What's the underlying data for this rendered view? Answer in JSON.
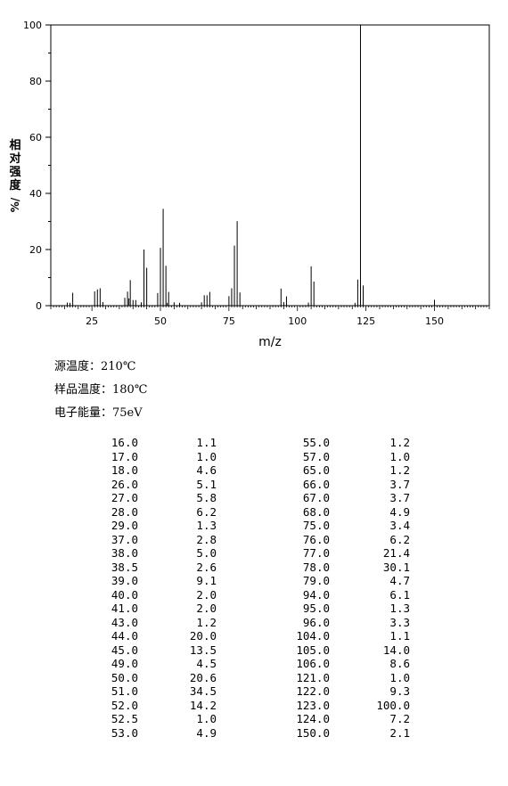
{
  "chart_data": {
    "type": "bar",
    "xlabel": "m/z",
    "ylabel": "相对强度 %/",
    "xlim": [
      10,
      170
    ],
    "ylim": [
      0,
      100
    ],
    "xticks": [
      25,
      50,
      75,
      100,
      125,
      150
    ],
    "yticks": [
      0,
      20,
      40,
      60,
      80,
      100
    ],
    "grid": false,
    "peaks": [
      {
        "mz": 16.0,
        "intensity": 1.1
      },
      {
        "mz": 17.0,
        "intensity": 1.0
      },
      {
        "mz": 18.0,
        "intensity": 4.6
      },
      {
        "mz": 26.0,
        "intensity": 5.1
      },
      {
        "mz": 27.0,
        "intensity": 5.8
      },
      {
        "mz": 28.0,
        "intensity": 6.2
      },
      {
        "mz": 29.0,
        "intensity": 1.3
      },
      {
        "mz": 37.0,
        "intensity": 2.8
      },
      {
        "mz": 38.0,
        "intensity": 5.0
      },
      {
        "mz": 38.5,
        "intensity": 2.6
      },
      {
        "mz": 39.0,
        "intensity": 9.1
      },
      {
        "mz": 40.0,
        "intensity": 2.0
      },
      {
        "mz": 41.0,
        "intensity": 2.0
      },
      {
        "mz": 43.0,
        "intensity": 1.2
      },
      {
        "mz": 44.0,
        "intensity": 20.0
      },
      {
        "mz": 45.0,
        "intensity": 13.5
      },
      {
        "mz": 49.0,
        "intensity": 4.5
      },
      {
        "mz": 50.0,
        "intensity": 20.6
      },
      {
        "mz": 51.0,
        "intensity": 34.5
      },
      {
        "mz": 52.0,
        "intensity": 14.2
      },
      {
        "mz": 52.5,
        "intensity": 1.0
      },
      {
        "mz": 53.0,
        "intensity": 4.9
      },
      {
        "mz": 55.0,
        "intensity": 1.2
      },
      {
        "mz": 57.0,
        "intensity": 1.0
      },
      {
        "mz": 65.0,
        "intensity": 1.2
      },
      {
        "mz": 66.0,
        "intensity": 3.7
      },
      {
        "mz": 67.0,
        "intensity": 3.7
      },
      {
        "mz": 68.0,
        "intensity": 4.9
      },
      {
        "mz": 75.0,
        "intensity": 3.4
      },
      {
        "mz": 76.0,
        "intensity": 6.2
      },
      {
        "mz": 77.0,
        "intensity": 21.4
      },
      {
        "mz": 78.0,
        "intensity": 30.1
      },
      {
        "mz": 79.0,
        "intensity": 4.7
      },
      {
        "mz": 94.0,
        "intensity": 6.1
      },
      {
        "mz": 95.0,
        "intensity": 1.3
      },
      {
        "mz": 96.0,
        "intensity": 3.3
      },
      {
        "mz": 104.0,
        "intensity": 1.1
      },
      {
        "mz": 105.0,
        "intensity": 14.0
      },
      {
        "mz": 106.0,
        "intensity": 8.6
      },
      {
        "mz": 121.0,
        "intensity": 1.0
      },
      {
        "mz": 122.0,
        "intensity": 9.3
      },
      {
        "mz": 123.0,
        "intensity": 100.0
      },
      {
        "mz": 124.0,
        "intensity": 7.2
      },
      {
        "mz": 150.0,
        "intensity": 2.1
      }
    ]
  },
  "conditions": [
    "源温度：210℃",
    "样品温度：180℃",
    "电子能量：75eV"
  ],
  "peak_table": [
    [
      "16.0",
      "1.1",
      "55.0",
      "1.2"
    ],
    [
      "17.0",
      "1.0",
      "57.0",
      "1.0"
    ],
    [
      "18.0",
      "4.6",
      "65.0",
      "1.2"
    ],
    [
      "26.0",
      "5.1",
      "66.0",
      "3.7"
    ],
    [
      "27.0",
      "5.8",
      "67.0",
      "3.7"
    ],
    [
      "28.0",
      "6.2",
      "68.0",
      "4.9"
    ],
    [
      "29.0",
      "1.3",
      "75.0",
      "3.4"
    ],
    [
      "37.0",
      "2.8",
      "76.0",
      "6.2"
    ],
    [
      "38.0",
      "5.0",
      "77.0",
      "21.4"
    ],
    [
      "38.5",
      "2.6",
      "78.0",
      "30.1"
    ],
    [
      "39.0",
      "9.1",
      "79.0",
      "4.7"
    ],
    [
      "40.0",
      "2.0",
      "94.0",
      "6.1"
    ],
    [
      "41.0",
      "2.0",
      "95.0",
      "1.3"
    ],
    [
      "43.0",
      "1.2",
      "96.0",
      "3.3"
    ],
    [
      "44.0",
      "20.0",
      "104.0",
      "1.1"
    ],
    [
      "45.0",
      "13.5",
      "105.0",
      "14.0"
    ],
    [
      "49.0",
      "4.5",
      "106.0",
      "8.6"
    ],
    [
      "50.0",
      "20.6",
      "121.0",
      "1.0"
    ],
    [
      "51.0",
      "34.5",
      "122.0",
      "9.3"
    ],
    [
      "52.0",
      "14.2",
      "123.0",
      "100.0"
    ],
    [
      "52.5",
      "1.0",
      "124.0",
      "7.2"
    ],
    [
      "53.0",
      "4.9",
      "150.0",
      "2.1"
    ]
  ]
}
